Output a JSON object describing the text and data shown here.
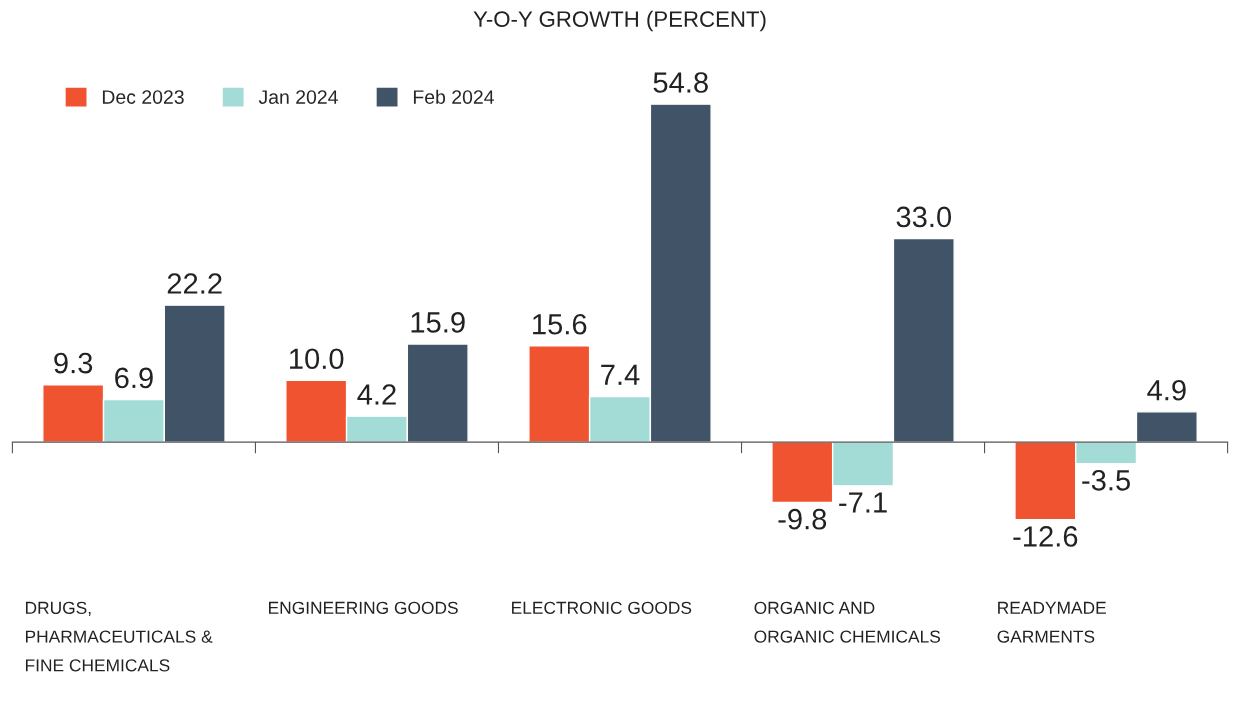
{
  "chart_data": {
    "type": "bar",
    "title": "Y-O-Y GROWTH (PERCENT)",
    "categories": [
      "DRUGS,\nPHARMACEUTICALS &\nFINE CHEMICALS",
      "ENGINEERING GOODS",
      "ELECTRONIC GOODS",
      "ORGANIC AND\nORGANIC CHEMICALS",
      "READYMADE\nGARMENTS"
    ],
    "series": [
      {
        "name": "Dec 2023",
        "color": "#f0532f",
        "values": [
          9.3,
          10.0,
          15.6,
          -9.8,
          -12.6
        ],
        "value_labels": [
          "9.3",
          "10.0",
          "15.6",
          "-9.8",
          "-12.6"
        ]
      },
      {
        "name": "Jan 2024",
        "color": "#a3dcd6",
        "values": [
          6.9,
          4.2,
          7.4,
          -7.1,
          -3.5
        ],
        "value_labels": [
          "6.9",
          "4.2",
          "7.4",
          "-7.1",
          "-3.5"
        ]
      },
      {
        "name": "Feb 2024",
        "color": "#415467",
        "values": [
          22.2,
          15.9,
          54.8,
          33.0,
          4.9
        ],
        "value_labels": [
          "22.2",
          "15.9",
          "54.8",
          "33.0",
          "4.9"
        ]
      }
    ],
    "legend": "top left",
    "grid": false
  }
}
